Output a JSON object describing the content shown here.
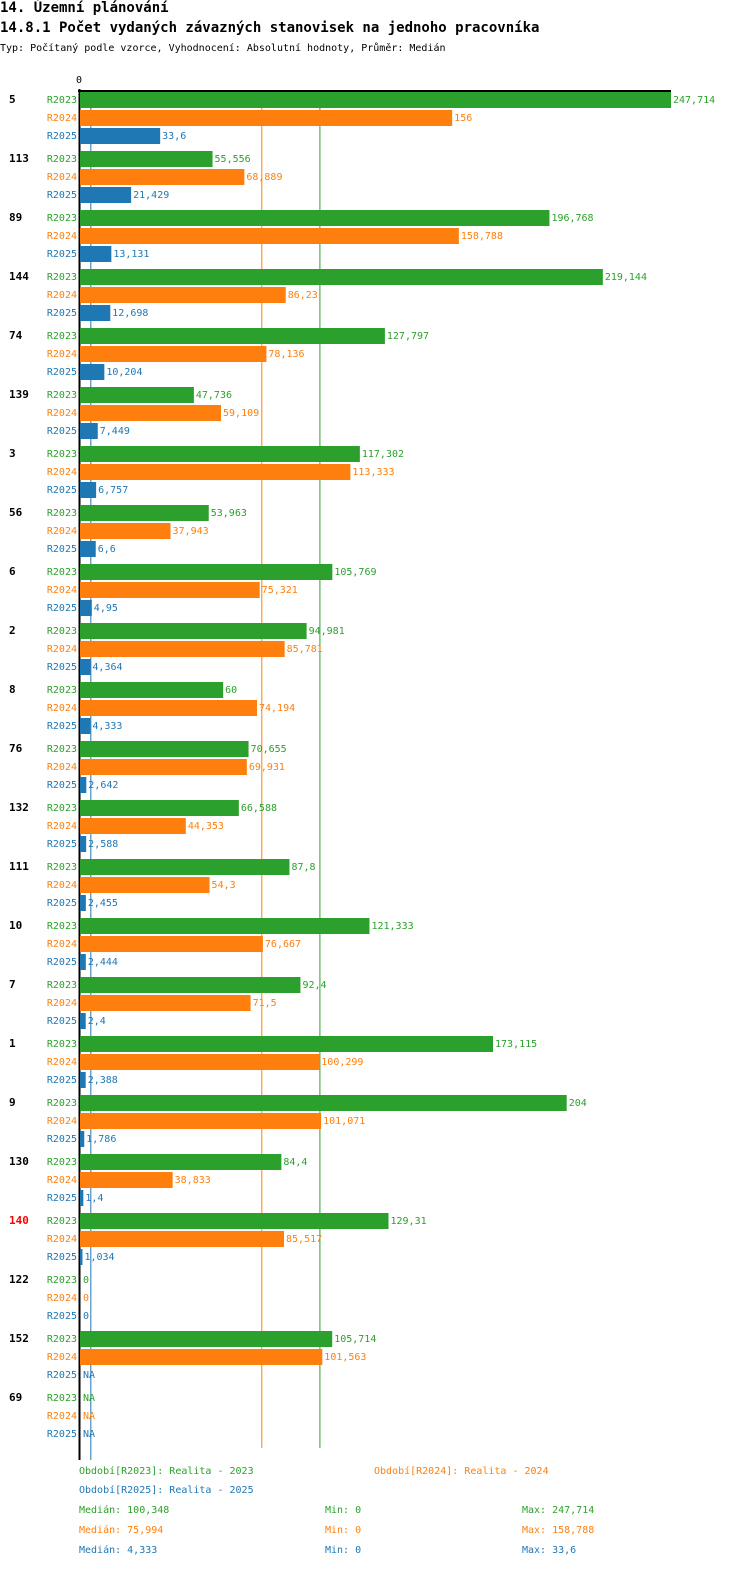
{
  "header": {
    "section": "14. Územní plánování",
    "title": "14.8.1 Počet vydaných závazných stanovisek na jednoho pracovníka",
    "subtitle": "Typ: Počítaný podle vzorce, Vyhodnocení: Absolutní hodnoty, Průměr: Medián"
  },
  "chart_data": {
    "type": "bar",
    "orientation": "horizontal",
    "axis_zero_label": "0",
    "xlim": [
      0,
      247.714
    ],
    "highlight_category": "140",
    "highlight_color": "#ff0000",
    "series": [
      {
        "name": "R2023",
        "color": "#2ca02c",
        "values": [
          "247,714",
          "55,556",
          "196,768",
          "219,144",
          "127,797",
          "47,736",
          "117,302",
          "53,963",
          "105,769",
          "94,981",
          "60",
          "70,655",
          "66,588",
          "87,8",
          "121,333",
          "92,4",
          "173,115",
          "204",
          "84,4",
          "129,31",
          "0",
          "105,714",
          "NA"
        ]
      },
      {
        "name": "R2024",
        "color": "#ff7f0e",
        "values": [
          "156",
          "68,889",
          "158,788",
          "86,23",
          "78,136",
          "59,109",
          "113,333",
          "37,943",
          "75,321",
          "85,781",
          "74,194",
          "69,931",
          "44,353",
          "54,3",
          "76,667",
          "71,5",
          "100,299",
          "101,071",
          "38,833",
          "85,517",
          "0",
          "101,563",
          "NA"
        ]
      },
      {
        "name": "R2025",
        "color": "#1f77b4",
        "values": [
          "33,6",
          "21,429",
          "13,131",
          "12,698",
          "10,204",
          "7,449",
          "6,757",
          "6,6",
          "4,95",
          "4,364",
          "4,333",
          "2,642",
          "2,588",
          "2,455",
          "2,444",
          "2,4",
          "2,388",
          "1,786",
          "1,4",
          "1,034",
          "0",
          "NA",
          "NA"
        ]
      }
    ],
    "categories": [
      "5",
      "113",
      "89",
      "144",
      "74",
      "139",
      "3",
      "56",
      "6",
      "2",
      "8",
      "76",
      "132",
      "111",
      "10",
      "7",
      "1",
      "9",
      "130",
      "140",
      "122",
      "152",
      "69"
    ],
    "medians": [
      100.348,
      75.994,
      4.333
    ]
  },
  "legend": {
    "r2023": "Období[R2023]: Realita - 2023",
    "r2024": "Období[R2024]: Realita - 2024",
    "r2025": "Období[R2025]: Realita - 2025"
  },
  "stats": [
    {
      "median": "Medián: 100,348",
      "min": "Min: 0",
      "max": "Max: 247,714"
    },
    {
      "median": "Medián: 75,994",
      "min": "Min: 0",
      "max": "Max: 158,788"
    },
    {
      "median": "Medián: 4,333",
      "min": "Min: 0",
      "max": "Max: 33,6"
    }
  ]
}
